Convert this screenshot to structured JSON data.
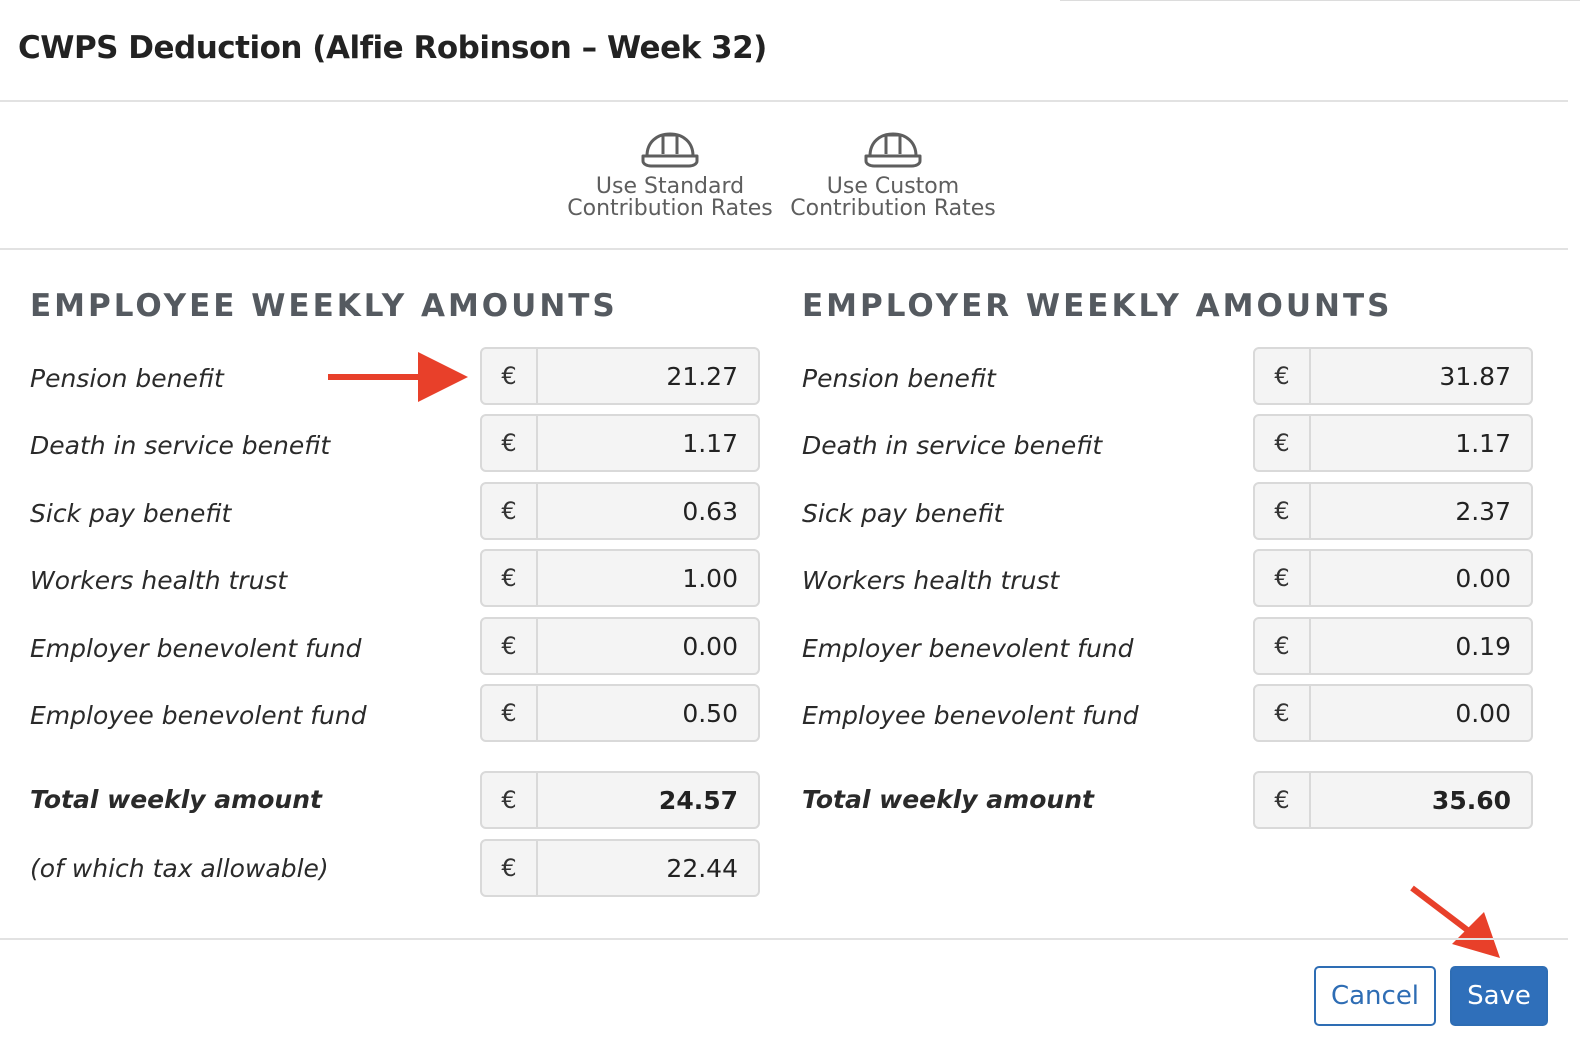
{
  "modal": {
    "title": "CWPS Deduction (Alfie Robinson – Week 32)"
  },
  "options": {
    "standard": {
      "line1": "Use Standard",
      "line2": "Contribution Rates",
      "icon": "hard-hat-icon"
    },
    "custom": {
      "line1": "Use Custom",
      "line2": "Contribution Rates",
      "icon": "hard-hat-icon"
    }
  },
  "currency_symbol": "€",
  "employee": {
    "title": "EMPLOYEE WEEKLY AMOUNTS",
    "rows": [
      {
        "label": "Pension benefit",
        "value": "21.27"
      },
      {
        "label": "Death in service benefit",
        "value": "1.17"
      },
      {
        "label": "Sick pay benefit",
        "value": "0.63"
      },
      {
        "label": "Workers health trust",
        "value": "1.00"
      },
      {
        "label": "Employer benevolent fund",
        "value": "0.00"
      },
      {
        "label": "Employee benevolent fund",
        "value": "0.50"
      }
    ],
    "total": {
      "label": "Total weekly amount",
      "value": "24.57"
    },
    "tax_allowable": {
      "label": "(of which tax allowable)",
      "value": "22.44"
    }
  },
  "employer": {
    "title": "EMPLOYER WEEKLY AMOUNTS",
    "rows": [
      {
        "label": "Pension benefit",
        "value": "31.87"
      },
      {
        "label": "Death in service benefit",
        "value": "1.17"
      },
      {
        "label": "Sick pay benefit",
        "value": "2.37"
      },
      {
        "label": "Workers health trust",
        "value": "0.00"
      },
      {
        "label": "Employer benevolent fund",
        "value": "0.19"
      },
      {
        "label": "Employee benevolent fund",
        "value": "0.00"
      }
    ],
    "total": {
      "label": "Total weekly amount",
      "value": "35.60"
    }
  },
  "footer": {
    "cancel_label": "Cancel",
    "save_label": "Save"
  },
  "colors": {
    "primary": "#2f6fba",
    "annotation_arrow": "#e8402a",
    "heading": "#555a60"
  }
}
